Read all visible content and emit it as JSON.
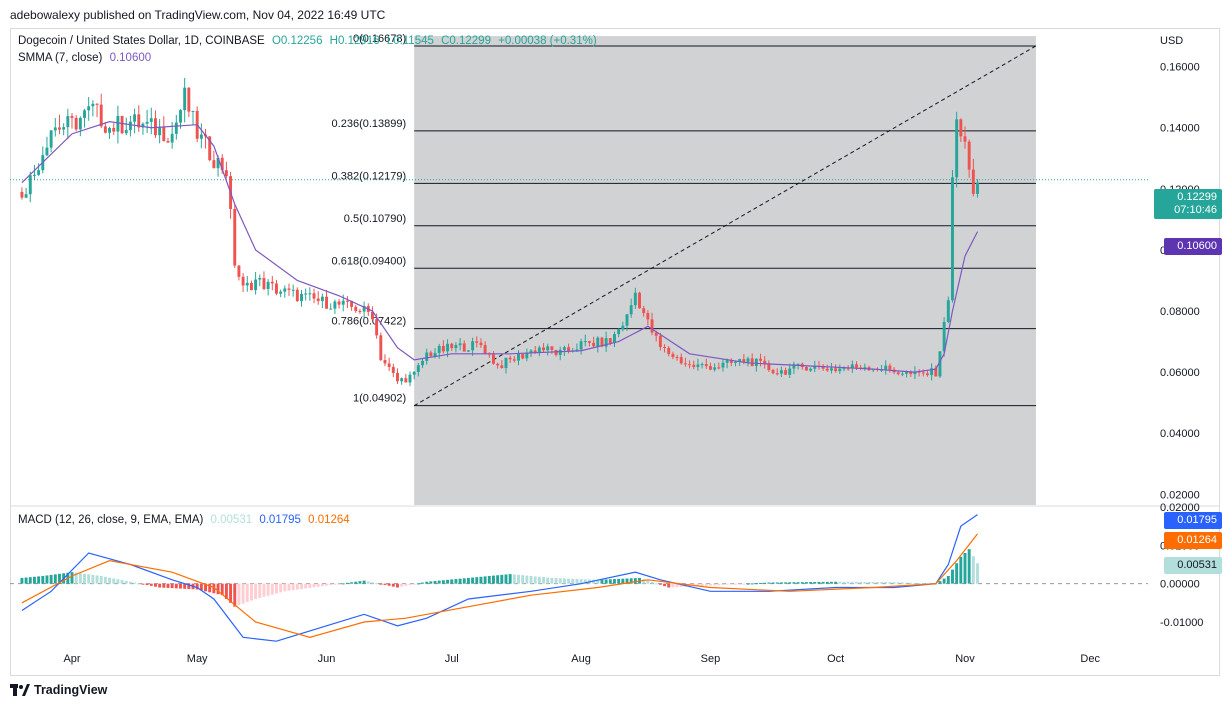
{
  "header": {
    "publisher_line": "adebowalexy published on TradingView.com, Nov 04, 2022 16:49 UTC"
  },
  "symbol_legend": {
    "name": "Dogecoin / United States Dollar, 1D, COINBASE",
    "o_label": "O",
    "o": "0.12256",
    "h_label": "H",
    "h": "0.12916",
    "l_label": "L",
    "l": "0.11545",
    "c_label": "C",
    "c": "0.12299",
    "change": "+0.00038 (+0.31%)"
  },
  "smma_legend": {
    "name": "SMMA (7, close)",
    "value": "0.10600"
  },
  "macd_legend": {
    "name": "MACD (12, 26, close, 9, EMA, EMA)",
    "hist": "0.00531",
    "macd": "0.01795",
    "signal": "0.01264"
  },
  "price_tags": {
    "last": "0.12299",
    "countdown": "07:10:46",
    "smma": "0.10600",
    "macd": "0.01795",
    "signal": "0.01264",
    "hist": "0.00531"
  },
  "footer": {
    "brand": "TradingView"
  },
  "colors": {
    "up": "#26a69a",
    "down": "#ef5350",
    "smma": "#7e57c2",
    "macd": "#2962ff",
    "signal": "#ff6d00",
    "fib_zone": "#d1d2d4"
  },
  "chart_data": {
    "type": "candlestick",
    "currency_label": "USD",
    "y_ticks": [
      "0.16000",
      "0.14000",
      "0.12000",
      "0.10000",
      "0.08000",
      "0.06000",
      "0.04000",
      "0.02000"
    ],
    "y_range": [
      0.0165,
      0.172
    ],
    "x_labels": [
      "Apr",
      "May",
      "Jun",
      "Jul",
      "Aug",
      "Sep",
      "Oct",
      "Nov",
      "Dec"
    ],
    "fib_levels": [
      {
        "label": "0(0.16678)",
        "value": 0.16678
      },
      {
        "label": "0.236(0.13899)",
        "value": 0.13899
      },
      {
        "label": "0.382(0.12179)",
        "value": 0.12179
      },
      {
        "label": "0.5(0.10790)",
        "value": 0.1079
      },
      {
        "label": "0.618(0.09400)",
        "value": 0.094
      },
      {
        "label": "0.786(0.07422)",
        "value": 0.07422
      },
      {
        "label": "1(0.04902)",
        "value": 0.04902
      }
    ],
    "fib_start_date": "Jun 22",
    "fib_end_date": "Nov 18",
    "price_path": [
      [
        "Mar 20",
        0.119
      ],
      [
        "Mar 23",
        0.125
      ],
      [
        "Mar 27",
        0.14
      ],
      [
        "Apr 1",
        0.141
      ],
      [
        "Apr 4",
        0.144
      ],
      [
        "Apr 6",
        0.146
      ],
      [
        "Apr 10",
        0.14
      ],
      [
        "Apr 15",
        0.142
      ],
      [
        "Apr 20",
        0.14
      ],
      [
        "Apr 25",
        0.138
      ],
      [
        "Apr 28",
        0.15
      ],
      [
        "May 1",
        0.138
      ],
      [
        "May 5",
        0.13
      ],
      [
        "May 8",
        0.126
      ],
      [
        "May 10",
        0.096
      ],
      [
        "May 12",
        0.087
      ],
      [
        "May 15",
        0.09
      ],
      [
        "May 20",
        0.087
      ],
      [
        "May 25",
        0.085
      ],
      [
        "May 31",
        0.083
      ],
      [
        "Jun 4",
        0.082
      ],
      [
        "Jun 8",
        0.081
      ],
      [
        "Jun 12",
        0.079
      ],
      [
        "Jun 14",
        0.065
      ],
      [
        "Jun 18",
        0.057
      ],
      [
        "Jun 22",
        0.059
      ],
      [
        "Jun 25",
        0.066
      ],
      [
        "Jul 1",
        0.068
      ],
      [
        "Jul 8",
        0.069
      ],
      [
        "Jul 12",
        0.062
      ],
      [
        "Jul 17",
        0.065
      ],
      [
        "Jul 22",
        0.068
      ],
      [
        "Jul 27",
        0.066
      ],
      [
        "Aug 1",
        0.069
      ],
      [
        "Aug 8",
        0.07
      ],
      [
        "Aug 12",
        0.078
      ],
      [
        "Aug 14",
        0.086
      ],
      [
        "Aug 17",
        0.076
      ],
      [
        "Aug 20",
        0.068
      ],
      [
        "Aug 27",
        0.062
      ],
      [
        "Sep 3",
        0.062
      ],
      [
        "Sep 10",
        0.064
      ],
      [
        "Sep 17",
        0.06
      ],
      [
        "Sep 24",
        0.062
      ],
      [
        "Oct 1",
        0.061
      ],
      [
        "Oct 8",
        0.062
      ],
      [
        "Oct 13",
        0.061
      ],
      [
        "Oct 20",
        0.059
      ],
      [
        "Oct 25",
        0.06
      ],
      [
        "Oct 27",
        0.075
      ],
      [
        "Oct 28",
        0.085
      ],
      [
        "Oct 29",
        0.125
      ],
      [
        "Oct 30",
        0.14
      ],
      [
        "Nov 1",
        0.135
      ],
      [
        "Nov 2",
        0.125
      ],
      [
        "Nov 3",
        0.12
      ],
      [
        "Nov 4",
        0.123
      ]
    ],
    "smma_path": [
      [
        "Mar 20",
        0.122
      ],
      [
        "Apr 1",
        0.138
      ],
      [
        "Apr 10",
        0.142
      ],
      [
        "Apr 20",
        0.14
      ],
      [
        "May 1",
        0.141
      ],
      [
        "May 5",
        0.134
      ],
      [
        "May 10",
        0.115
      ],
      [
        "May 15",
        0.1
      ],
      [
        "May 25",
        0.09
      ],
      [
        "Jun 4",
        0.085
      ],
      [
        "Jun 12",
        0.08
      ],
      [
        "Jun 18",
        0.068
      ],
      [
        "Jun 22",
        0.064
      ],
      [
        "Jul 1",
        0.066
      ],
      [
        "Jul 15",
        0.066
      ],
      [
        "Aug 1",
        0.067
      ],
      [
        "Aug 10",
        0.07
      ],
      [
        "Aug 17",
        0.075
      ],
      [
        "Aug 27",
        0.066
      ],
      [
        "Sep 10",
        0.063
      ],
      [
        "Sep 25",
        0.062
      ],
      [
        "Oct 10",
        0.061
      ],
      [
        "Oct 20",
        0.06
      ],
      [
        "Oct 25",
        0.061
      ],
      [
        "Oct 27",
        0.066
      ],
      [
        "Oct 29",
        0.08
      ],
      [
        "Nov 1",
        0.098
      ],
      [
        "Nov 4",
        0.106
      ]
    ],
    "macd_y_ticks": [
      "0.02000",
      "0.01000",
      "0.00000",
      "-0.01000"
    ],
    "macd_range": [
      -0.016,
      0.02
    ],
    "macd_path": [
      [
        "Mar 20",
        -0.007
      ],
      [
        "Mar 27",
        -0.002
      ],
      [
        "Apr 5",
        0.008
      ],
      [
        "Apr 15",
        0.005
      ],
      [
        "Apr 25",
        0.001
      ],
      [
        "May 1",
        -0.001
      ],
      [
        "May 5",
        -0.004
      ],
      [
        "May 12",
        -0.014
      ],
      [
        "May 20",
        -0.015
      ],
      [
        "Jun 1",
        -0.011
      ],
      [
        "Jun 10",
        -0.008
      ],
      [
        "Jun 18",
        -0.011
      ],
      [
        "Jun 25",
        -0.009
      ],
      [
        "Jul 5",
        -0.004
      ],
      [
        "Jul 20",
        -0.002
      ],
      [
        "Aug 1",
        0.0
      ],
      [
        "Aug 14",
        0.003
      ],
      [
        "Aug 20",
        0.001
      ],
      [
        "Sep 1",
        -0.002
      ],
      [
        "Sep 15",
        -0.002
      ],
      [
        "Oct 1",
        -0.001
      ],
      [
        "Oct 15",
        -0.001
      ],
      [
        "Oct 25",
        0.0
      ],
      [
        "Oct 28",
        0.005
      ],
      [
        "Oct 31",
        0.015
      ],
      [
        "Nov 4",
        0.018
      ]
    ],
    "signal_path": [
      [
        "Mar 20",
        -0.005
      ],
      [
        "Apr 1",
        0.002
      ],
      [
        "Apr 10",
        0.006
      ],
      [
        "Apr 25",
        0.003
      ],
      [
        "May 5",
        -0.001
      ],
      [
        "May 15",
        -0.01
      ],
      [
        "May 28",
        -0.014
      ],
      [
        "Jun 10",
        -0.01
      ],
      [
        "Jun 20",
        -0.009
      ],
      [
        "Jul 5",
        -0.006
      ],
      [
        "Jul 20",
        -0.003
      ],
      [
        "Aug 5",
        -0.001
      ],
      [
        "Aug 17",
        0.001
      ],
      [
        "Sep 1",
        -0.001
      ],
      [
        "Sep 20",
        -0.002
      ],
      [
        "Oct 10",
        -0.001
      ],
      [
        "Oct 25",
        0.0
      ],
      [
        "Oct 30",
        0.006
      ],
      [
        "Nov 4",
        0.013
      ]
    ],
    "macd_histogram": [
      [
        "Mar 20",
        0.0015
      ],
      [
        "Mar 25",
        0.002
      ],
      [
        "Apr 1",
        0.003
      ],
      [
        "Apr 8",
        0.002
      ],
      [
        "Apr 15",
        0.0005
      ],
      [
        "Apr 22",
        -0.001
      ],
      [
        "May 1",
        -0.0015
      ],
      [
        "May 7",
        -0.003
      ],
      [
        "May 10",
        -0.006
      ],
      [
        "May 15",
        -0.004
      ],
      [
        "May 22",
        -0.002
      ],
      [
        "Jun 1",
        -0.0005
      ],
      [
        "Jun 10",
        0.0008
      ],
      [
        "Jun 18",
        -0.001
      ],
      [
        "Jun 25",
        0.0005
      ],
      [
        "Jul 5",
        0.0015
      ],
      [
        "Jul 15",
        0.0025
      ],
      [
        "Jul 25",
        0.0015
      ],
      [
        "Aug 5",
        0.001
      ],
      [
        "Aug 15",
        0.0015
      ],
      [
        "Aug 22",
        -0.001
      ],
      [
        "Sep 1",
        -0.0005
      ],
      [
        "Sep 15",
        0.0003
      ],
      [
        "Oct 1",
        0.0005
      ],
      [
        "Oct 15",
        0.0004
      ],
      [
        "Oct 25",
        0.0
      ],
      [
        "Oct 28",
        0.002
      ],
      [
        "Oct 31",
        0.007
      ],
      [
        "Nov 2",
        0.009
      ],
      [
        "Nov 4",
        0.0053
      ]
    ]
  }
}
